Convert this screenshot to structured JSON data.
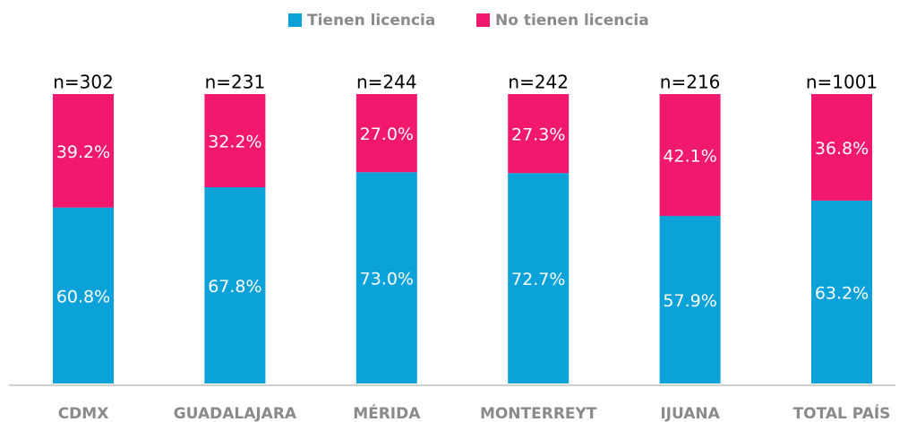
{
  "chart_data": {
    "type": "stacked_bar",
    "categories": [
      "CDMX",
      "GUADALAJARA",
      "MÉRIDA",
      "MONTERREYT",
      "IJUANA",
      "TOTAL PAÍS"
    ],
    "annotations": [
      "n=302",
      "n=231",
      "n=244",
      "n=242",
      "n=216",
      "n=1001"
    ],
    "series": [
      {
        "name": "Tienen licencia",
        "color": "#0aa2d9",
        "values": [
          60.8,
          67.8,
          73.0,
          72.7,
          57.9,
          63.2
        ],
        "value_labels": [
          "60.8%",
          "67.8%",
          "73.0%",
          "72.7%",
          "57.9%",
          "63.2%"
        ]
      },
      {
        "name": "No tienen licencia",
        "color": "#f2186e",
        "values": [
          39.2,
          32.2,
          27.0,
          27.3,
          42.1,
          36.8
        ],
        "value_labels": [
          "39.2%",
          "32.2%",
          "27.0%",
          "27.3%",
          "42.1%",
          "36.8%"
        ]
      }
    ],
    "ylim": [
      0,
      100
    ],
    "legend": "top"
  }
}
